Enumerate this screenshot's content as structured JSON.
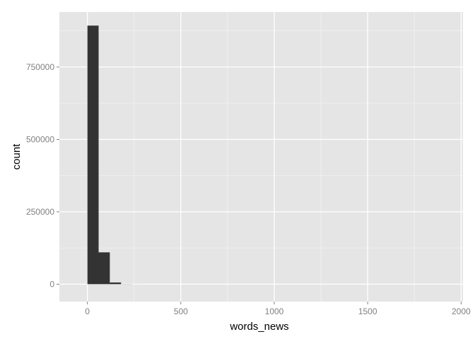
{
  "chart_data": {
    "type": "bar",
    "title": "",
    "xlabel": "words_news",
    "ylabel": "count",
    "xlim": [
      -150,
      2010
    ],
    "ylim": [
      -60000,
      940000
    ],
    "x_ticks": [
      0,
      500,
      1000,
      1500,
      2000
    ],
    "x_tick_labels": [
      "0",
      "500",
      "1000",
      "1500",
      "2000"
    ],
    "y_ticks": [
      0,
      250000,
      500000,
      750000
    ],
    "y_tick_labels": [
      "0",
      "250000",
      "500000",
      "750000"
    ],
    "grid": true,
    "bins": [
      {
        "x0": 0,
        "x1": 60,
        "count": 893000
      },
      {
        "x0": 60,
        "x1": 120,
        "count": 110000
      },
      {
        "x0": 120,
        "x1": 180,
        "count": 6000
      },
      {
        "x0": 180,
        "x1": 240,
        "count": 400
      },
      {
        "x0": 240,
        "x1": 300,
        "count": 60
      }
    ],
    "colors": {
      "bar": "#333333",
      "panel": "#e5e5e5",
      "grid_major": "#ffffff",
      "grid_minor": "#f2f2f2"
    }
  }
}
